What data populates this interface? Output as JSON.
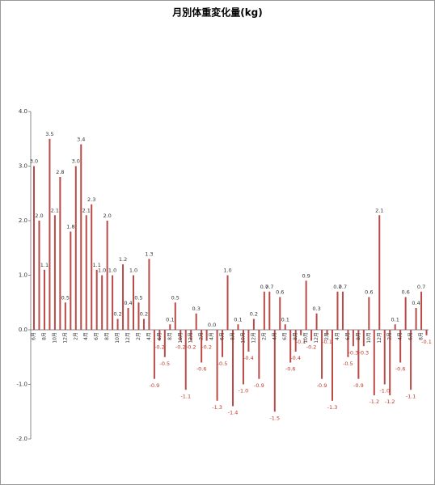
{
  "chart_data": {
    "type": "bar",
    "title": "月別体重変化量(kg)",
    "categories": [
      "6月",
      null,
      "8月",
      null,
      "10月",
      null,
      "12月",
      null,
      "2月",
      null,
      "4月",
      null,
      "6月",
      null,
      "8月",
      null,
      "10月",
      null,
      "12月",
      null,
      "2月",
      null,
      "4月",
      null,
      "6月",
      null,
      "8月",
      null,
      "10月",
      null,
      "12月",
      null,
      "2月",
      null,
      "4月",
      null,
      "6月",
      null,
      "8月",
      null,
      "10月",
      null,
      "12月",
      null,
      "2月",
      null,
      "4月",
      null,
      "6月",
      null,
      "8月",
      null,
      "10月",
      null,
      "12月",
      null,
      "2月",
      null,
      "4月",
      null,
      "6月",
      null,
      "8月",
      null,
      "10月",
      null,
      "12月",
      null,
      "2月",
      null,
      "4月",
      null,
      "6月",
      null,
      "8月",
      null
    ],
    "values": [
      3.0,
      2.0,
      1.1,
      3.5,
      2.1,
      2.8,
      0.5,
      1.8,
      3.0,
      3.4,
      2.1,
      2.3,
      1.1,
      1.0,
      2.0,
      1.0,
      0.2,
      1.2,
      0.4,
      1.0,
      0.5,
      0.2,
      1.3,
      -0.9,
      -0.2,
      -0.5,
      0.1,
      0.5,
      -0.2,
      -1.1,
      -0.2,
      0.3,
      -0.6,
      -0.2,
      0.0,
      -1.3,
      -0.5,
      1.0,
      -1.4,
      0.1,
      -1.0,
      -0.4,
      0.2,
      -0.9,
      0.7,
      0.7,
      -1.5,
      0.6,
      0.1,
      -0.6,
      -0.4,
      -0.1,
      0.9,
      -0.2,
      0.3,
      -0.9,
      -0.1,
      -1.3,
      0.7,
      0.7,
      -0.5,
      -0.3,
      -0.9,
      -0.3,
      0.6,
      -1.2,
      2.1,
      -1.0,
      -1.2,
      0.1,
      -0.6,
      0.6,
      -1.1,
      0.4,
      0.7,
      -0.1
    ],
    "value_labels": [
      "3.0",
      "2.0",
      "1.1",
      "3.5",
      "2.1",
      "2.8",
      "0.5",
      "1.8",
      "3.0",
      "3.4",
      "2.1",
      "2.3",
      "1.1",
      "1.0",
      "2.0",
      "1.0",
      "0.2",
      "1.2",
      "0.4",
      "1.0",
      "0.5",
      "0.2",
      "1.3",
      "-0.9",
      "-0.2",
      "-0.5",
      "0.1",
      "0.5",
      "-0.2",
      "-1.1",
      "-0.2",
      "0.3",
      "-0.6",
      "-0.2",
      "0.0",
      "-1.3",
      "-0.5",
      "1.0",
      "-1.4",
      "0.1",
      "-1.0",
      "-0.4",
      "0.2",
      "-0.9",
      "0.7",
      "0.7",
      "-1.5",
      "0.6",
      "0.1",
      "-0.6",
      "-0.4",
      "-0.1",
      "0.9",
      "-0.2",
      "0.3",
      "-0.9",
      "-0.1",
      "-1.3",
      "0.7",
      "0.7",
      "-0.5",
      "-0.3",
      "-0.9",
      "-0.3",
      "0.6",
      "-1.2",
      "2.1",
      "-1.0",
      "-1.2",
      "0.1",
      "-0.6",
      "0.6",
      "-1.1",
      "0.4",
      "0.7",
      "-0.1"
    ],
    "color": "#b94a48",
    "ylim": [
      -2,
      4
    ],
    "yticks": [
      {
        "value": -2,
        "label": "-2.0"
      },
      {
        "value": -1,
        "label": "-1.0"
      },
      {
        "value": 0,
        "label": "0.0"
      },
      {
        "value": 1,
        "label": "1.0"
      },
      {
        "value": 2,
        "label": "2.0"
      },
      {
        "value": 3,
        "label": "3.0"
      },
      {
        "value": 4,
        "label": "4.0"
      }
    ],
    "grid": false
  }
}
